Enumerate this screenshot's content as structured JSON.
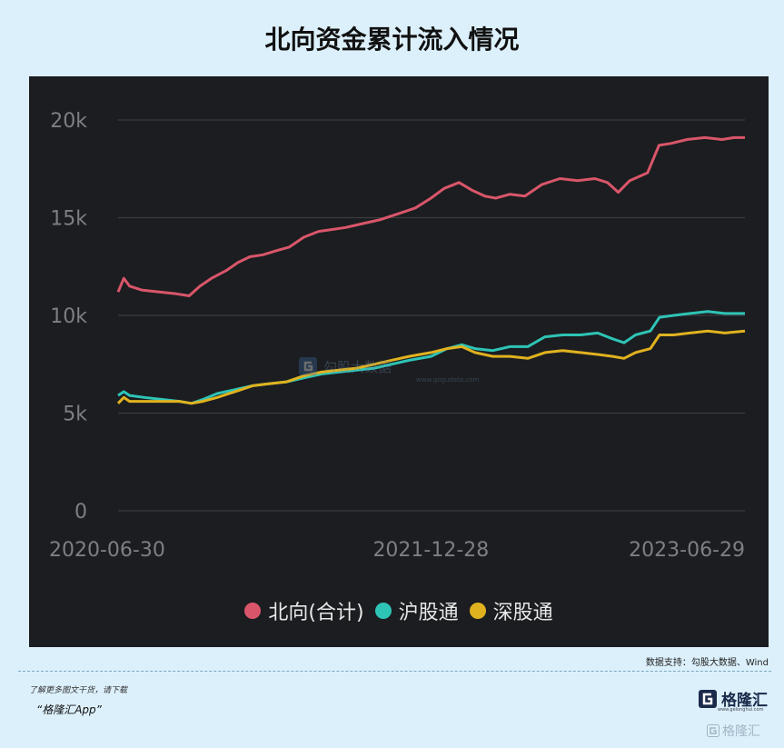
{
  "title": "北向资金累计流入情况",
  "chart_data": {
    "type": "line",
    "x_start": "2020-06-30",
    "x_end": "2023-06-29",
    "x_tick_labels": [
      "2020-06-30",
      "2021-12-28",
      "2023-06-29"
    ],
    "y_tick_labels": [
      "0",
      "5k",
      "10k",
      "15k",
      "20k"
    ],
    "ylim": [
      0,
      20000
    ],
    "grid": true,
    "legend_position": "bottom",
    "series": [
      {
        "name": "北向(合计)",
        "color": "#d9566a",
        "points": [
          [
            "2020-06-30",
            11200
          ],
          [
            "2020-07-10",
            11900
          ],
          [
            "2020-07-20",
            11500
          ],
          [
            "2020-08-10",
            11300
          ],
          [
            "2020-09-10",
            11200
          ],
          [
            "2020-10-10",
            11100
          ],
          [
            "2020-11-01",
            11000
          ],
          [
            "2020-11-20",
            11500
          ],
          [
            "2020-12-10",
            11900
          ],
          [
            "2021-01-05",
            12300
          ],
          [
            "2021-01-25",
            12700
          ],
          [
            "2021-02-15",
            13000
          ],
          [
            "2021-03-10",
            13100
          ],
          [
            "2021-04-01",
            13300
          ],
          [
            "2021-04-25",
            13500
          ],
          [
            "2021-05-20",
            14000
          ],
          [
            "2021-06-15",
            14300
          ],
          [
            "2021-07-10",
            14400
          ],
          [
            "2021-08-01",
            14500
          ],
          [
            "2021-09-01",
            14700
          ],
          [
            "2021-10-01",
            14900
          ],
          [
            "2021-11-01",
            15200
          ],
          [
            "2021-12-01",
            15500
          ],
          [
            "2021-12-28",
            16000
          ],
          [
            "2022-01-20",
            16500
          ],
          [
            "2022-02-15",
            16800
          ],
          [
            "2022-03-10",
            16400
          ],
          [
            "2022-04-01",
            16100
          ],
          [
            "2022-04-20",
            16000
          ],
          [
            "2022-05-15",
            16200
          ],
          [
            "2022-06-10",
            16100
          ],
          [
            "2022-07-10",
            16700
          ],
          [
            "2022-08-10",
            17000
          ],
          [
            "2022-09-10",
            16900
          ],
          [
            "2022-10-10",
            17000
          ],
          [
            "2022-11-01",
            16800
          ],
          [
            "2022-11-20",
            16300
          ],
          [
            "2022-12-10",
            16900
          ],
          [
            "2023-01-10",
            17300
          ],
          [
            "2023-01-30",
            18700
          ],
          [
            "2023-02-20",
            18800
          ],
          [
            "2023-03-20",
            19000
          ],
          [
            "2023-04-20",
            19100
          ],
          [
            "2023-05-20",
            19000
          ],
          [
            "2023-06-10",
            19100
          ],
          [
            "2023-06-29",
            19100
          ]
        ]
      },
      {
        "name": "沪股通",
        "color": "#2ec4b6",
        "points": [
          [
            "2020-06-30",
            5900
          ],
          [
            "2020-07-10",
            6100
          ],
          [
            "2020-07-20",
            5900
          ],
          [
            "2020-08-15",
            5800
          ],
          [
            "2020-09-15",
            5700
          ],
          [
            "2020-10-15",
            5600
          ],
          [
            "2020-11-05",
            5500
          ],
          [
            "2020-11-25",
            5700
          ],
          [
            "2020-12-20",
            6000
          ],
          [
            "2021-01-20",
            6200
          ],
          [
            "2021-02-20",
            6400
          ],
          [
            "2021-03-20",
            6500
          ],
          [
            "2021-04-20",
            6600
          ],
          [
            "2021-05-20",
            6800
          ],
          [
            "2021-06-20",
            7000
          ],
          [
            "2021-07-20",
            7100
          ],
          [
            "2021-08-20",
            7200
          ],
          [
            "2021-09-20",
            7300
          ],
          [
            "2021-10-20",
            7500
          ],
          [
            "2021-11-20",
            7700
          ],
          [
            "2021-12-28",
            7900
          ],
          [
            "2022-01-25",
            8300
          ],
          [
            "2022-02-20",
            8500
          ],
          [
            "2022-03-15",
            8300
          ],
          [
            "2022-04-15",
            8200
          ],
          [
            "2022-05-15",
            8400
          ],
          [
            "2022-06-15",
            8400
          ],
          [
            "2022-07-15",
            8900
          ],
          [
            "2022-08-15",
            9000
          ],
          [
            "2022-09-15",
            9000
          ],
          [
            "2022-10-15",
            9100
          ],
          [
            "2022-11-10",
            8800
          ],
          [
            "2022-11-30",
            8600
          ],
          [
            "2022-12-20",
            9000
          ],
          [
            "2023-01-15",
            9200
          ],
          [
            "2023-01-31",
            9900
          ],
          [
            "2023-02-25",
            10000
          ],
          [
            "2023-03-25",
            10100
          ],
          [
            "2023-04-25",
            10200
          ],
          [
            "2023-05-25",
            10100
          ],
          [
            "2023-06-29",
            10100
          ]
        ]
      },
      {
        "name": "深股通",
        "color": "#e0b21f",
        "points": [
          [
            "2020-06-30",
            5500
          ],
          [
            "2020-07-10",
            5800
          ],
          [
            "2020-07-20",
            5600
          ],
          [
            "2020-08-15",
            5600
          ],
          [
            "2020-09-15",
            5600
          ],
          [
            "2020-10-15",
            5600
          ],
          [
            "2020-11-05",
            5500
          ],
          [
            "2020-11-25",
            5600
          ],
          [
            "2020-12-20",
            5800
          ],
          [
            "2021-01-20",
            6100
          ],
          [
            "2021-02-20",
            6400
          ],
          [
            "2021-03-20",
            6500
          ],
          [
            "2021-04-20",
            6600
          ],
          [
            "2021-05-20",
            6900
          ],
          [
            "2021-06-20",
            7100
          ],
          [
            "2021-07-20",
            7200
          ],
          [
            "2021-08-20",
            7300
          ],
          [
            "2021-09-20",
            7500
          ],
          [
            "2021-10-20",
            7700
          ],
          [
            "2021-11-20",
            7900
          ],
          [
            "2021-12-28",
            8100
          ],
          [
            "2022-01-25",
            8300
          ],
          [
            "2022-02-20",
            8400
          ],
          [
            "2022-03-15",
            8100
          ],
          [
            "2022-04-15",
            7900
          ],
          [
            "2022-05-15",
            7900
          ],
          [
            "2022-06-15",
            7800
          ],
          [
            "2022-07-15",
            8100
          ],
          [
            "2022-08-15",
            8200
          ],
          [
            "2022-09-15",
            8100
          ],
          [
            "2022-10-15",
            8000
          ],
          [
            "2022-11-10",
            7900
          ],
          [
            "2022-11-30",
            7800
          ],
          [
            "2022-12-20",
            8100
          ],
          [
            "2023-01-15",
            8300
          ],
          [
            "2023-01-31",
            9000
          ],
          [
            "2023-02-25",
            9000
          ],
          [
            "2023-03-25",
            9100
          ],
          [
            "2023-04-25",
            9200
          ],
          [
            "2023-05-25",
            9100
          ],
          [
            "2023-06-29",
            9200
          ]
        ]
      }
    ]
  },
  "source_text": "数据支持：勾股大数据、Wind",
  "promo": {
    "line1": "了解更多图文干货，请下载",
    "line2": "“格隆汇App”"
  },
  "logo": {
    "text": "格隆汇",
    "sub": "www.gelonghui.com",
    "icon": "gelonghui-logo-icon"
  },
  "watermark": {
    "text": "勾股大数据",
    "sub": "www.gogudata.com",
    "icon": "gogudata-logo-icon"
  },
  "corner_watermark": "格隆汇"
}
